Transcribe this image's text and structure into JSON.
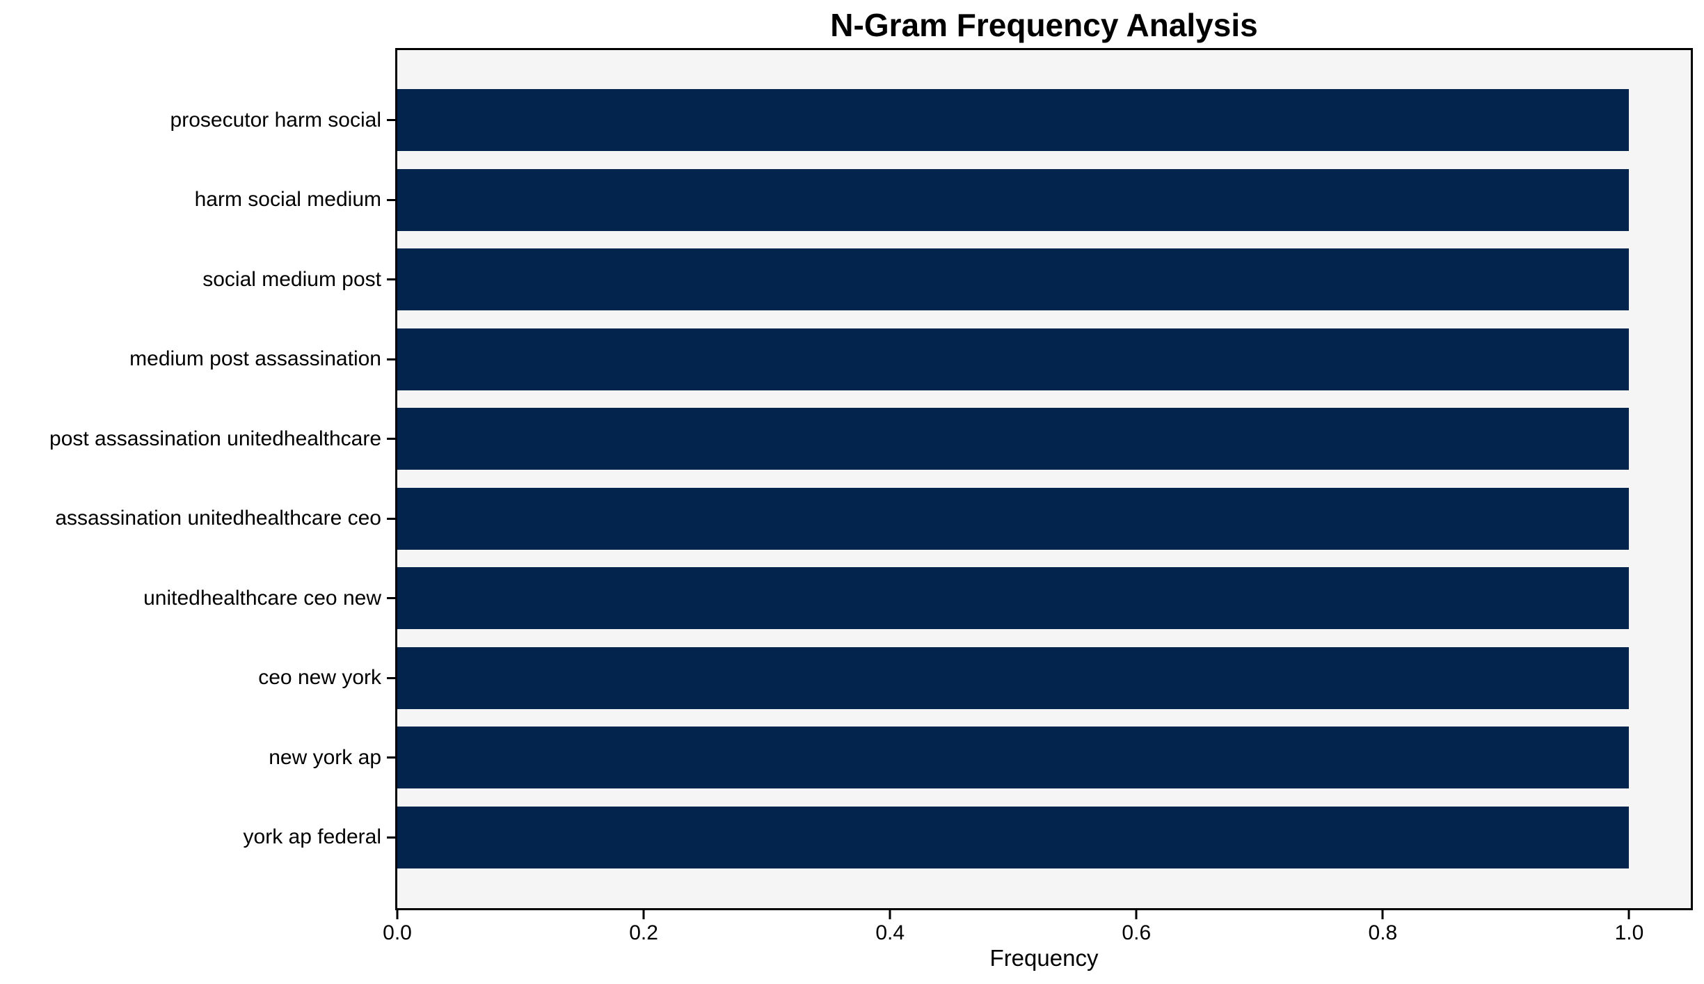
{
  "chart_data": {
    "type": "bar",
    "orientation": "horizontal",
    "title": "N-Gram Frequency Analysis",
    "xlabel": "Frequency",
    "ylabel": "",
    "categories": [
      "prosecutor harm social",
      "harm social medium",
      "social medium post",
      "medium post assassination",
      "post assassination unitedhealthcare",
      "assassination unitedhealthcare ceo",
      "unitedhealthcare ceo new",
      "ceo new york",
      "new york ap",
      "york ap federal"
    ],
    "values": [
      1.0,
      1.0,
      1.0,
      1.0,
      1.0,
      1.0,
      1.0,
      1.0,
      1.0,
      1.0
    ],
    "x_ticks": [
      0.0,
      0.2,
      0.4,
      0.6,
      0.8,
      1.0
    ],
    "x_tick_labels": [
      "0.0",
      "0.2",
      "0.4",
      "0.6",
      "0.8",
      "1.0"
    ],
    "xlim": [
      0,
      1.05
    ],
    "grid": false,
    "legend_position": "none",
    "colors": {
      "bar": "#03254d",
      "plot_background": "#f5f5f5",
      "figure_background": "#ffffff",
      "spine": "#000000",
      "text": "#000000"
    }
  }
}
